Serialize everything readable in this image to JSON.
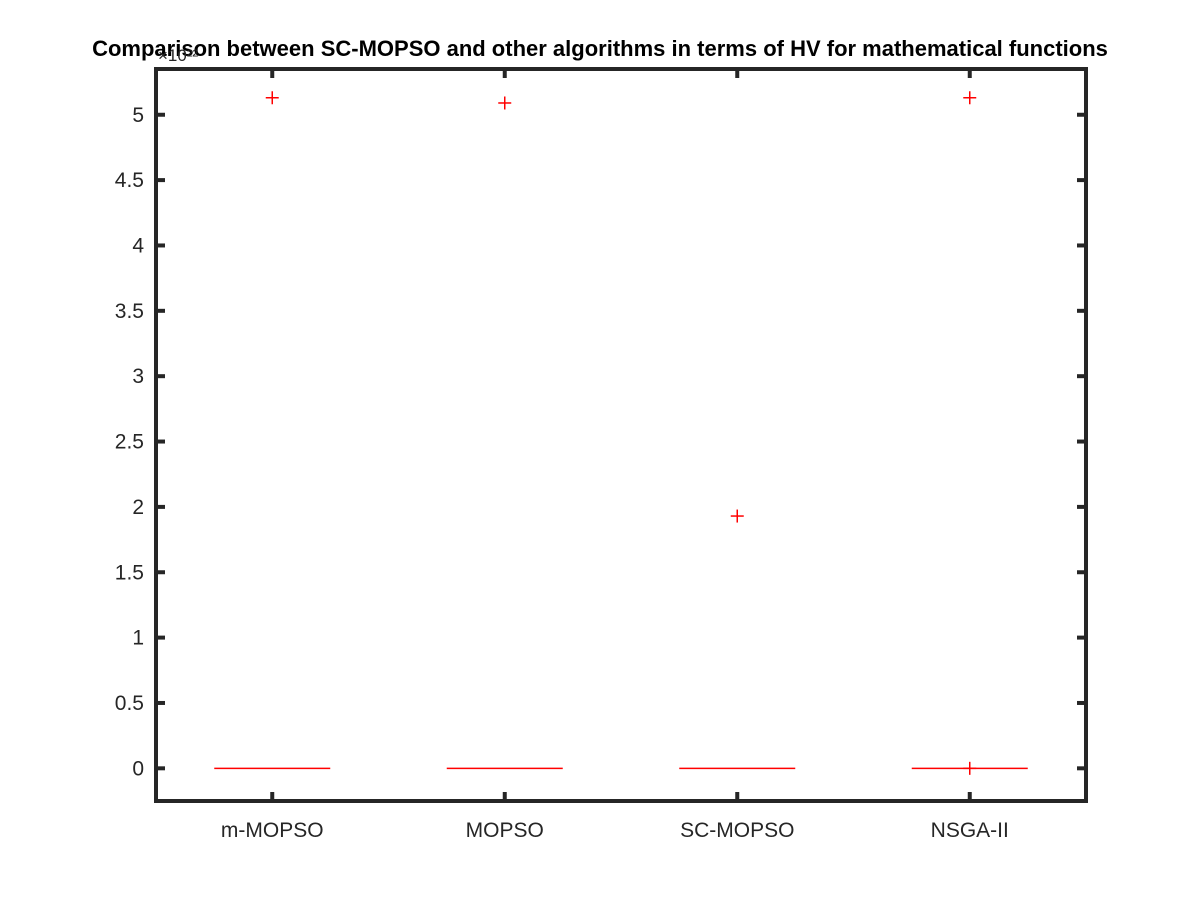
{
  "chart_data": {
    "type": "box",
    "title": "Comparison between SC-MOPSO and other algorithms in terms of HV for mathematical functions",
    "xlabel": "",
    "ylabel": "",
    "categories": [
      "m-MOPSO",
      "MOPSO",
      "SC-MOPSO",
      "NSGA-II"
    ],
    "y_exponent_label": "×10²²",
    "y_multiplier": 1e+22,
    "ylim": [
      -0.25,
      5.35
    ],
    "yticks": [
      0,
      0.5,
      1,
      1.5,
      2,
      2.5,
      3,
      3.5,
      4,
      4.5,
      5
    ],
    "ytick_labels": [
      "0",
      "0.5",
      "1",
      "1.5",
      "2",
      "2.5",
      "3",
      "3.5",
      "4",
      "4.5",
      "5"
    ],
    "medians": [
      0,
      0,
      0,
      0
    ],
    "outliers": [
      {
        "category": "m-MOPSO",
        "values": [
          5.13
        ]
      },
      {
        "category": "MOPSO",
        "values": [
          5.09
        ]
      },
      {
        "category": "SC-MOPSO",
        "values": [
          1.93
        ]
      },
      {
        "category": "NSGA-II",
        "values": [
          5.13,
          0
        ]
      }
    ],
    "grid": false,
    "colors": {
      "median": "#ff0000",
      "outlier": "#ff0000",
      "axes": "#262626"
    }
  }
}
